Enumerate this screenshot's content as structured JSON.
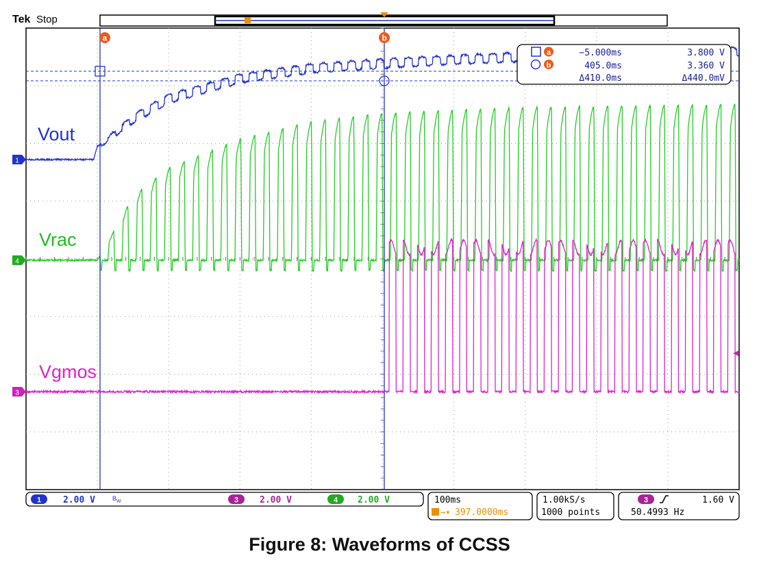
{
  "header": {
    "brand": "Tek",
    "status": "Stop"
  },
  "chart_data": {
    "type": "line",
    "title": "",
    "grid": true,
    "divisions": {
      "x": 10,
      "y": 8
    },
    "time_per_div_ms": 100,
    "trigger_position_ms": 397.0,
    "x_range_ms": [
      -100,
      900
    ],
    "series": [
      {
        "name": "Vout",
        "channel": 1,
        "color": "#2233cc",
        "volts_per_div": 2.0,
        "description": "stair-step rise from flat baseline starting at cursor a, approaching steady level with ripple",
        "points_ms_V": [
          [
            -100,
            0.0
          ],
          [
            -5,
            0.0
          ],
          [
            0,
            0.4
          ],
          [
            50,
            1.4
          ],
          [
            100,
            2.1
          ],
          [
            200,
            2.8
          ],
          [
            300,
            3.15
          ],
          [
            400,
            3.32
          ],
          [
            500,
            3.45
          ],
          [
            600,
            3.55
          ],
          [
            700,
            3.62
          ],
          [
            800,
            3.68
          ],
          [
            900,
            3.72
          ]
        ]
      },
      {
        "name": "Vrac",
        "channel": 4,
        "color": "#22cc22",
        "volts_per_div": 2.0,
        "description": "rectified pulses at 50 Hz growing in amplitude after cursor a, saturating near 5.4 V",
        "points_ms_V": [
          [
            -100,
            0.0
          ],
          [
            -5,
            0.0
          ],
          [
            0,
            0.0
          ],
          [
            50,
            2.2
          ],
          [
            100,
            3.2
          ],
          [
            200,
            4.2
          ],
          [
            300,
            4.8
          ],
          [
            400,
            5.1
          ],
          [
            600,
            5.3
          ],
          [
            900,
            5.4
          ]
        ]
      },
      {
        "name": "Vgmos",
        "channel": 3,
        "color": "#dd22cc",
        "volts_per_div": 2.0,
        "description": "flat at 0 V until cursor b, then 50 Hz gate pulses of about 5 V",
        "points_ms_V": [
          [
            -100,
            0.0
          ],
          [
            405,
            0.0
          ],
          [
            410,
            5.0
          ],
          [
            900,
            5.0
          ]
        ]
      }
    ],
    "cursors": [
      {
        "label": "a",
        "time": "−5.000ms",
        "value": "3.800 V"
      },
      {
        "label": "b",
        "time": "405.0ms",
        "value": "3.360 V"
      }
    ],
    "deltas": {
      "time": "Δ410.0ms",
      "value": "Δ440.0mV"
    }
  },
  "labels": {
    "vout": "Vout",
    "vrac": "Vrac",
    "vgmos": "Vgmos"
  },
  "bottom_bar": {
    "ch1": {
      "num": "1",
      "scale": "2.00 V",
      "bw": "B",
      "bw_sub": "W"
    },
    "ch3": {
      "num": "3",
      "scale": "2.00 V"
    },
    "ch4": {
      "num": "4",
      "scale": "2.00 V"
    },
    "timebase": {
      "scale": "100ms",
      "trigger_pos": "397.0000ms"
    },
    "acq": {
      "rate": "1.00kS/s",
      "points": "1000 points"
    },
    "trig": {
      "source": "3",
      "level": "1.60 V",
      "freq": "50.4993 Hz"
    }
  },
  "caption": "Figure 8: Waveforms of CCSS",
  "colors": {
    "ch1": "#2233cc",
    "ch3": "#dd22cc",
    "ch4": "#22cc22",
    "trigger": "#f08c00",
    "cursor": "#2233cc"
  }
}
